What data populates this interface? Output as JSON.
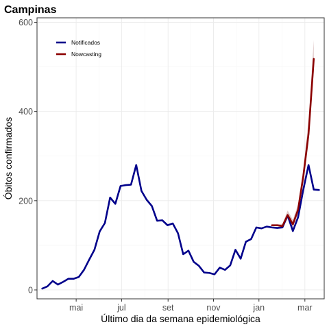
{
  "chart_data": {
    "type": "line",
    "title": "Campinas",
    "xlabel": "Último dia da semana epidemiológica",
    "ylabel": "Óbitos confirmados",
    "ylim": [
      -20,
      610
    ],
    "yticks": [
      0,
      200,
      400,
      600
    ],
    "xlim": [
      0,
      55
    ],
    "xticks": [
      {
        "pos": 7.5,
        "label": "mai"
      },
      {
        "pos": 16.2,
        "label": "jul"
      },
      {
        "pos": 25.1,
        "label": "set"
      },
      {
        "pos": 33.8,
        "label": "nov"
      },
      {
        "pos": 42.5,
        "label": "jan"
      },
      {
        "pos": 51.3,
        "label": "mar"
      }
    ],
    "grid": true,
    "legend_position": "top-left",
    "series": [
      {
        "name": "Notificados",
        "color": "#00008b",
        "x": [
          1,
          2,
          3,
          4,
          5,
          6,
          7,
          8,
          9,
          10,
          11,
          12,
          13,
          14,
          15,
          16,
          17,
          18,
          19,
          20,
          21,
          22,
          23,
          24,
          25,
          26,
          27,
          28,
          29,
          30,
          31,
          32,
          33,
          34,
          35,
          36,
          37,
          38,
          39,
          40,
          41,
          42,
          43,
          44,
          45,
          46,
          47,
          48,
          49,
          50,
          51,
          52,
          53,
          54
        ],
        "values": [
          3,
          8,
          20,
          12,
          18,
          25,
          25,
          29,
          45,
          68,
          90,
          131,
          150,
          207,
          193,
          233,
          235,
          236,
          280,
          222,
          202,
          188,
          155,
          156,
          145,
          149,
          127,
          80,
          88,
          63,
          54,
          39,
          38,
          35,
          50,
          45,
          55,
          90,
          70,
          108,
          114,
          140,
          138,
          142,
          140,
          139,
          140,
          167,
          132,
          163,
          225,
          280,
          225,
          224
        ]
      },
      {
        "name": "Nowcasting",
        "color": "#8b0000",
        "x": [
          45,
          46,
          47,
          48,
          49,
          50,
          51,
          52,
          53
        ],
        "values": [
          145,
          145,
          143,
          168,
          147,
          180,
          255,
          350,
          518
        ],
        "upper": [
          146,
          147,
          148,
          178,
          157,
          192,
          272,
          380,
          560
        ],
        "lower": [
          144,
          143,
          139,
          160,
          140,
          170,
          240,
          330,
          490
        ]
      }
    ]
  }
}
